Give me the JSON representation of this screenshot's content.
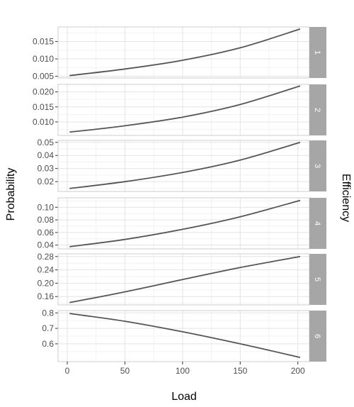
{
  "chart_data": {
    "type": "line",
    "xlabel": "Load",
    "ylabel": "Probability",
    "right_label": "Efficiency",
    "x_ticks": [
      0,
      50,
      100,
      150,
      200
    ],
    "xlim": [
      -8,
      210
    ],
    "grid": true,
    "colors": {
      "line": "#555555",
      "strip": "#a6a6a6",
      "strip_text": "#ffffff",
      "grid_major": "#e3e3e3",
      "grid_minor": "#f2f2f2",
      "panel_border": "#cccccc"
    },
    "panels": [
      {
        "strip": "1",
        "ylim": [
          0.0045,
          0.0192
        ],
        "y_ticks": [
          0.005,
          0.01,
          0.015
        ],
        "y_tick_labels": [
          "0.005",
          "0.010",
          "0.015"
        ],
        "x": [
          2,
          50,
          100,
          150,
          202
        ],
        "y": [
          0.0052,
          0.0071,
          0.0096,
          0.0132,
          0.0186
        ]
      },
      {
        "strip": "2",
        "ylim": [
          0.0055,
          0.0225
        ],
        "y_ticks": [
          0.01,
          0.015,
          0.02
        ],
        "y_tick_labels": [
          "0.010",
          "0.015",
          "0.020"
        ],
        "x": [
          2,
          50,
          100,
          150,
          202
        ],
        "y": [
          0.0066,
          0.0087,
          0.0116,
          0.0158,
          0.022
        ]
      },
      {
        "strip": "3",
        "ylim": [
          0.0125,
          0.0515
        ],
        "y_ticks": [
          0.02,
          0.03,
          0.04,
          0.05
        ],
        "y_tick_labels": [
          "0.02",
          "0.03",
          "0.04",
          "0.05"
        ],
        "x": [
          2,
          50,
          100,
          150,
          202
        ],
        "y": [
          0.0148,
          0.02,
          0.027,
          0.0365,
          0.05
        ]
      },
      {
        "strip": "4",
        "ylim": [
          0.034,
          0.115
        ],
        "y_ticks": [
          0.04,
          0.06,
          0.08,
          0.1
        ],
        "y_tick_labels": [
          "0.04",
          "0.06",
          "0.08",
          "0.10"
        ],
        "x": [
          2,
          50,
          100,
          150,
          202
        ],
        "y": [
          0.0375,
          0.049,
          0.065,
          0.085,
          0.111
        ]
      },
      {
        "strip": "5",
        "ylim": [
          0.135,
          0.288
        ],
        "y_ticks": [
          0.16,
          0.2,
          0.24,
          0.28
        ],
        "y_tick_labels": [
          "0.16",
          "0.20",
          "0.24",
          "0.28"
        ],
        "x": [
          2,
          50,
          100,
          150,
          202
        ],
        "y": [
          0.142,
          0.174,
          0.211,
          0.247,
          0.28
        ]
      },
      {
        "strip": "6",
        "ylim": [
          0.485,
          0.815
        ],
        "y_ticks": [
          0.6,
          0.7,
          0.8
        ],
        "y_tick_labels": [
          "0.6",
          "0.7",
          "0.8"
        ],
        "x": [
          2,
          50,
          100,
          150,
          202
        ],
        "y": [
          0.796,
          0.746,
          0.678,
          0.6,
          0.512
        ]
      }
    ]
  }
}
